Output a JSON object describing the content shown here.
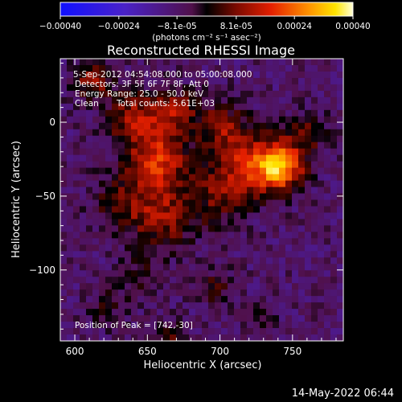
{
  "chart_data": {
    "type": "heatmap",
    "title": "Reconstructed RHESSI Image",
    "xlabel": "Heliocentric X (arcsec)",
    "ylabel": "Heliocentric Y (arcsec)",
    "xlim": [
      590,
      785
    ],
    "ylim": [
      -148,
      43
    ],
    "xticks": [
      600,
      650,
      700,
      750
    ],
    "yticks": [
      0,
      -50,
      -100
    ],
    "colorbar": {
      "range": [
        -0.0004,
        0.0004
      ],
      "tick_values": [
        -0.0004,
        -0.00024,
        -8.1e-05,
        8.1e-05,
        0.00024,
        0.0004
      ],
      "tick_labels": [
        "-0.00040",
        "-0.00024",
        "-8.1e-05",
        "8.1e-05",
        "0.00024",
        "0.00040"
      ],
      "units": "(photons cm⁻² s⁻¹ asec⁻²)"
    },
    "annotations": {
      "time_range": "5-Sep-2012 04:54:08.000 to 05:00:08.000",
      "detectors": "Detectors: 3F 5F 6F 7F 8F, Att 0",
      "energy_range": "Energy Range: 25.0 - 50.0 keV",
      "clean_label": "Clean",
      "total_counts": "Total counts: 5.61E+03",
      "peak_position": "Position of Peak = [742,-30]"
    },
    "sources": [
      {
        "x": 742,
        "y": -30,
        "sigma": 11,
        "amp": 0.00035
      },
      {
        "x": 720,
        "y": -28,
        "sigma": 15,
        "amp": 0.00022
      },
      {
        "x": 657,
        "y": -25,
        "sigma": 15,
        "amp": 0.00024
      },
      {
        "x": 640,
        "y": 3,
        "sigma": 12,
        "amp": 0.00018
      },
      {
        "x": 668,
        "y": 8,
        "sigma": 11,
        "amp": 0.00016
      },
      {
        "x": 700,
        "y": -3,
        "sigma": 12,
        "amp": 0.00015
      },
      {
        "x": 660,
        "y": -63,
        "sigma": 16,
        "amp": 0.00017
      },
      {
        "x": 700,
        "y": -50,
        "sigma": 14,
        "amp": 0.00012
      },
      {
        "x": 612,
        "y": 28,
        "sigma": 10,
        "amp": 0.00016
      },
      {
        "x": 630,
        "y": -55,
        "sigma": 13,
        "amp": 0.00011
      },
      {
        "x": 760,
        "y": -8,
        "sigma": 10,
        "amp": 0.00011
      },
      {
        "x": 697,
        "y": -112,
        "sigma": 9,
        "amp": 9e-05
      },
      {
        "x": 645,
        "y": -105,
        "sigma": 10,
        "amp": 8e-05
      },
      {
        "x": 665,
        "y": -142,
        "sigma": 6,
        "amp": 0.00012
      },
      {
        "x": 622,
        "y": -125,
        "sigma": 9,
        "amp": 7e-05
      },
      {
        "x": 730,
        "y": -130,
        "sigma": 8,
        "amp": 6e-05
      }
    ],
    "background": -8e-05
  },
  "footer": {
    "timestamp": "14-May-2022 06:44"
  }
}
